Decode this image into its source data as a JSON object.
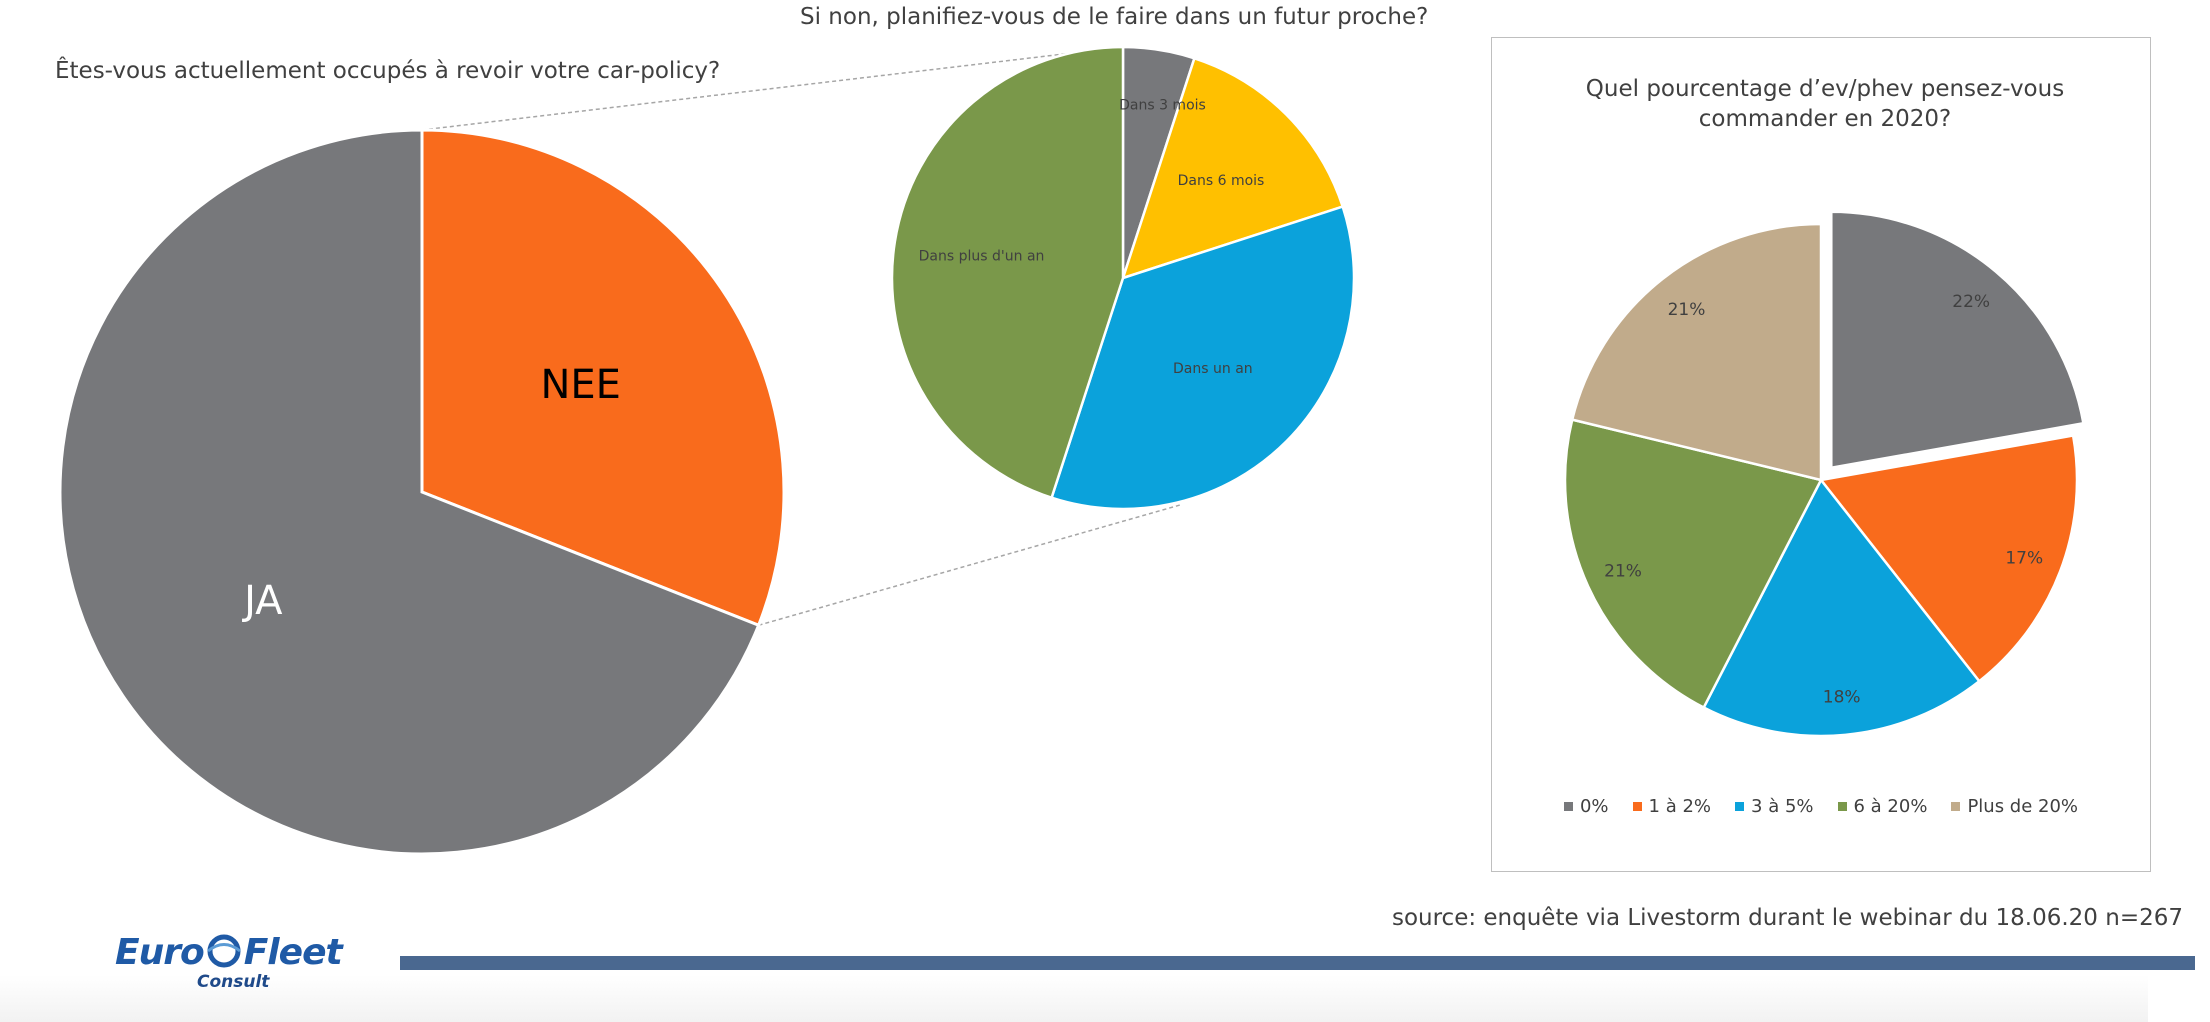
{
  "questions": {
    "q1": "Êtes-vous actuellement occupés à revoir votre car-policy?",
    "q2": "Si non, planifiez-vous de le faire dans un futur proche?",
    "q3_line1": "Quel pourcentage d’ev/phev pensez-vous",
    "q3_line2": "commander en 2020?"
  },
  "source": "source: enquête via Livestorm durant le webinar du 18.06.20 n=267",
  "logo": {
    "word": "EuroFleet",
    "sub": "Consult"
  },
  "colors": {
    "gray": "#77787b",
    "orange": "#f96b1c",
    "yellow": "#ffc000",
    "blue": "#0ba2db",
    "green": "#7a984a",
    "tan": "#c1ab8b",
    "footer_bar": "#4a6890"
  },
  "chart_data": [
    {
      "type": "pie",
      "title": "Êtes-vous actuellement occupés à revoir votre car-policy?",
      "categories": [
        "NEE",
        "JA"
      ],
      "values": [
        31,
        69
      ],
      "colors": [
        "#f96b1c",
        "#77787b"
      ],
      "label_colors": [
        "#000000",
        "#ffffff"
      ]
    },
    {
      "type": "pie",
      "title": "Si non, planifiez-vous de le faire dans un futur proche?",
      "categories": [
        "Dans 3 mois",
        "Dans 6 mois",
        "Dans un an",
        "Dans plus d'un an"
      ],
      "values": [
        5,
        15,
        35,
        45
      ],
      "colors": [
        "#77787b",
        "#ffc000",
        "#0ba2db",
        "#7a984a"
      ]
    },
    {
      "type": "pie",
      "title": "Quel pourcentage d’ev/phev pensez-vous commander en 2020?",
      "categories": [
        "0%",
        "1 à 2%",
        "3 à 5%",
        "6 à 20%",
        "Plus de 20%"
      ],
      "values": [
        22,
        17,
        18,
        21,
        21
      ],
      "labels": [
        "22%",
        "17%",
        "18%",
        "21%",
        "21%"
      ],
      "colors": [
        "#77787b",
        "#f96b1c",
        "#0ba2db",
        "#7a984a",
        "#c1ab8b"
      ],
      "exploded": "0%",
      "legend": "bottom"
    }
  ]
}
